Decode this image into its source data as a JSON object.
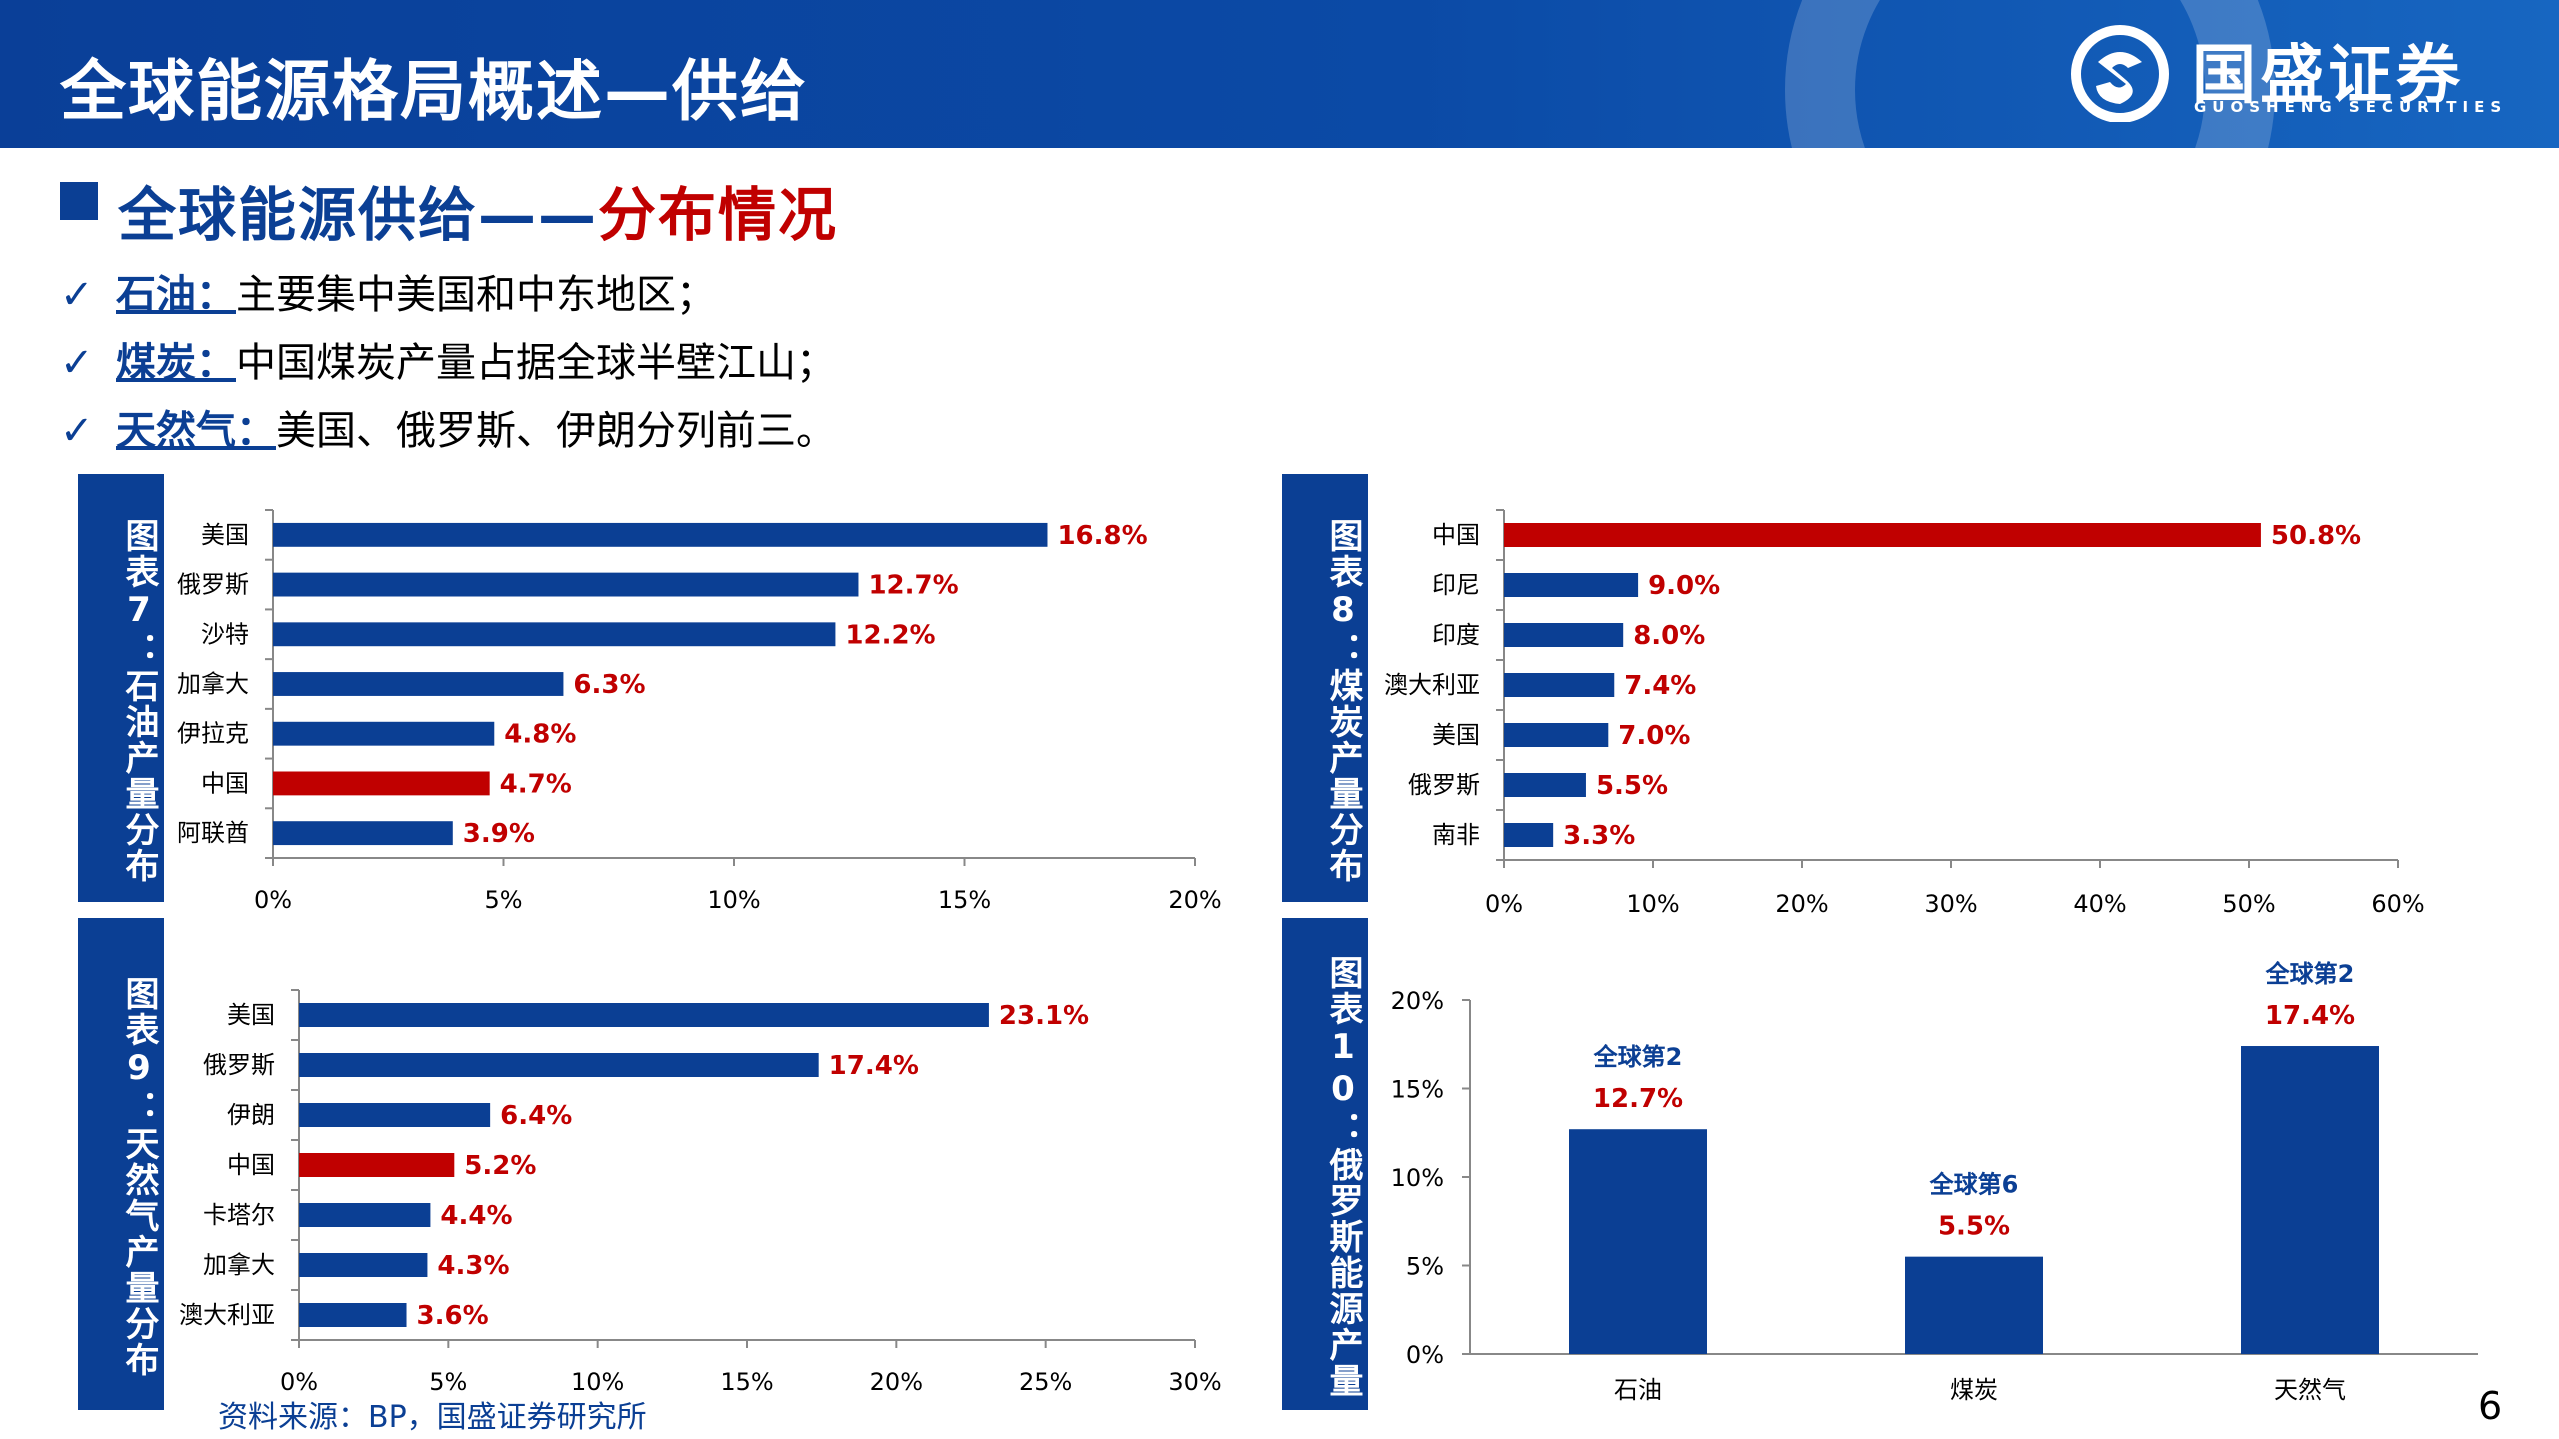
{
  "header": {
    "title": "全球能源格局概述—供给",
    "logo_name": "国盛证券",
    "logo_sub": "GUOSHENG SECURITIES"
  },
  "section": {
    "title_prefix": "全球能源供给——",
    "title_highlight": "分布情况"
  },
  "bullets": [
    {
      "check": "✓",
      "key": "石油：",
      "text": "主要集中美国和中东地区；"
    },
    {
      "check": "✓",
      "key": "煤炭：",
      "text": "中国煤炭产量占据全球半壁江山；"
    },
    {
      "check": "✓",
      "key": "天然气：",
      "text": "美国、俄罗斯、伊朗分列前三。"
    }
  ],
  "colors": {
    "primary": "#0b3f94",
    "highlight": "#c00000"
  },
  "chart_data": [
    {
      "type": "bar",
      "orientation": "horizontal",
      "title": "图表7：石油产量分布",
      "categories": [
        "美国",
        "俄罗斯",
        "沙特",
        "加拿大",
        "伊拉克",
        "中国",
        "阿联酋"
      ],
      "values": [
        16.8,
        12.7,
        12.2,
        6.3,
        4.8,
        4.7,
        3.9
      ],
      "labels": [
        "16.8%",
        "12.7%",
        "12.2%",
        "6.3%",
        "4.8%",
        "4.7%",
        "3.9%"
      ],
      "highlight": [
        "中国"
      ],
      "xlim": [
        0,
        20
      ],
      "ticks": [
        "0%",
        "5%",
        "10%",
        "15%",
        "20%"
      ],
      "tick_values": [
        0,
        5,
        10,
        15,
        20
      ]
    },
    {
      "type": "bar",
      "orientation": "horizontal",
      "title": "图表8：煤炭产量分布",
      "categories": [
        "中国",
        "印尼",
        "印度",
        "澳大利亚",
        "美国",
        "俄罗斯",
        "南非"
      ],
      "values": [
        50.8,
        9.0,
        8.0,
        7.4,
        7.0,
        5.5,
        3.3
      ],
      "labels": [
        "50.8%",
        "9.0%",
        "8.0%",
        "7.4%",
        "7.0%",
        "5.5%",
        "3.3%"
      ],
      "highlight": [
        "中国"
      ],
      "xlim": [
        0,
        60
      ],
      "ticks": [
        "0%",
        "10%",
        "20%",
        "30%",
        "40%",
        "50%",
        "60%"
      ],
      "tick_values": [
        0,
        10,
        20,
        30,
        40,
        50,
        60
      ]
    },
    {
      "type": "bar",
      "orientation": "horizontal",
      "title": "图表9：天然气产量分布",
      "categories": [
        "美国",
        "俄罗斯",
        "伊朗",
        "中国",
        "卡塔尔",
        "加拿大",
        "澳大利亚"
      ],
      "values": [
        23.1,
        17.4,
        6.4,
        5.2,
        4.4,
        4.3,
        3.6
      ],
      "labels": [
        "23.1%",
        "17.4%",
        "6.4%",
        "5.2%",
        "4.4%",
        "4.3%",
        "3.6%"
      ],
      "highlight": [
        "中国"
      ],
      "xlim": [
        0,
        30
      ],
      "ticks": [
        "0%",
        "5%",
        "10%",
        "15%",
        "20%",
        "25%",
        "30%"
      ],
      "tick_values": [
        0,
        5,
        10,
        15,
        20,
        25,
        30
      ]
    },
    {
      "type": "bar",
      "orientation": "vertical",
      "title": "图表10：俄罗斯能源产量",
      "categories": [
        "石油",
        "煤炭",
        "天然气"
      ],
      "values": [
        12.7,
        5.5,
        17.4
      ],
      "labels": [
        "12.7%",
        "5.5%",
        "17.4%"
      ],
      "ranks": [
        "全球第2",
        "全球第6",
        "全球第2"
      ],
      "ylim": [
        0,
        20
      ],
      "ticks": [
        "0%",
        "5%",
        "10%",
        "15%",
        "20%"
      ],
      "tick_values": [
        0,
        5,
        10,
        15,
        20
      ]
    }
  ],
  "footer": {
    "source": "资料来源：BP，国盛证券研究所",
    "page": "6"
  }
}
